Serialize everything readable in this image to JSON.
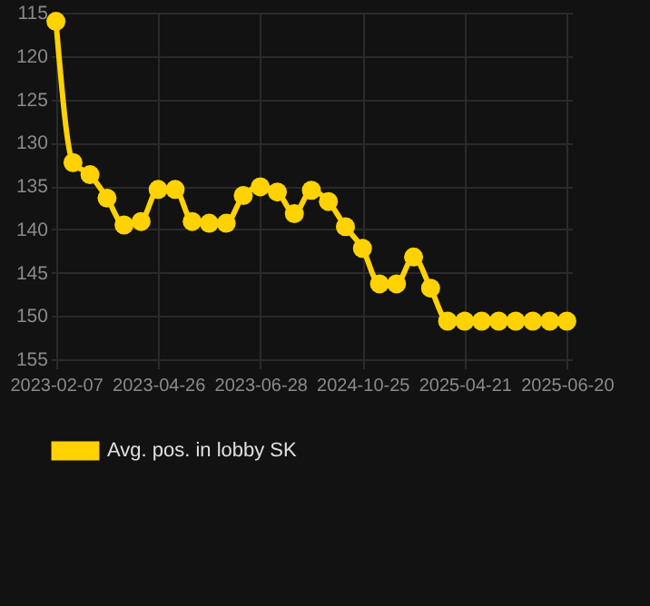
{
  "chart_data": {
    "type": "line",
    "categories": [
      "2023-02-07",
      null,
      null,
      null,
      null,
      null,
      "2023-04-26",
      null,
      null,
      null,
      null,
      null,
      "2023-06-28",
      null,
      null,
      null,
      null,
      null,
      "2024-10-25",
      null,
      null,
      null,
      null,
      null,
      "2025-04-21",
      null,
      null,
      null,
      null,
      null,
      "2025-06-20"
    ],
    "series": [
      {
        "name": "Avg. pos. in lobby SK",
        "color": "#ffd200",
        "values": [
          116,
          132.3,
          133.7,
          136.4,
          139.5,
          139.1,
          135.4,
          135.4,
          139.1,
          139.3,
          139.3,
          136.1,
          135.1,
          135.7,
          138.2,
          135.5,
          136.8,
          139.7,
          142.2,
          146.3,
          146.3,
          143.2,
          146.8,
          150.6,
          150.6,
          150.6,
          150.6,
          150.6,
          150.6,
          150.6,
          150.6
        ]
      }
    ],
    "ylim": [
      155,
      115
    ],
    "yticks": [
      115,
      120,
      125,
      130,
      135,
      140,
      145,
      150,
      155
    ],
    "grid": true,
    "legend": "bottom",
    "marker": "circle",
    "line_style": "solid"
  }
}
